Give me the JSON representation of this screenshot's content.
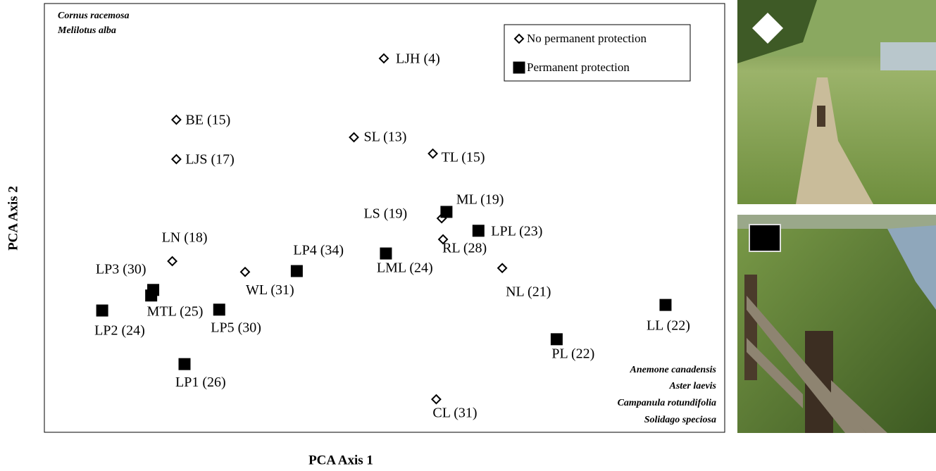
{
  "chart_data": {
    "type": "scatter",
    "xlabel": "PCA Axis 1",
    "ylabel": "PCA Axis 2",
    "xlim": [
      0,
      100
    ],
    "ylim": [
      0,
      100
    ],
    "legend": "top-right",
    "annotations": {
      "top_left": [
        "Cornus racemosa",
        "Melilotus alba"
      ],
      "bottom_right": [
        "Anemone canadensis",
        "Aster laevis",
        "Campanula rotundifolia",
        "Solidago speciosa"
      ]
    },
    "series": [
      {
        "name": "No permanent protection",
        "marker": "diamond",
        "color": "#000000",
        "filled": false,
        "labels": [
          "LJH (4)",
          "BE (15)",
          "SL (13)",
          "LJS (17)",
          "TL (15)",
          "LS (19)",
          "RL (28)",
          "LN (18)",
          "WL (31)",
          "NL (21)",
          "CL (31)"
        ],
        "x": [
          49.9,
          19.4,
          45.5,
          19.4,
          57.1,
          58.4,
          58.6,
          18.8,
          29.5,
          67.3,
          57.6
        ],
        "y": [
          87.2,
          72.9,
          68.8,
          63.7,
          65.0,
          49.9,
          45.0,
          39.9,
          37.4,
          38.3,
          7.7
        ]
      },
      {
        "name": "Permanent protection",
        "marker": "square",
        "color": "#000000",
        "filled": true,
        "labels": [
          "ML (19)",
          "LPL (23)",
          "LP4 (34)",
          "LML (24)",
          "LP3 (30)",
          "MTL (25)",
          "LP2 (24)",
          "LP5 (30)",
          "LL (22)",
          "PL (22)",
          "LP1 (26)"
        ],
        "x": [
          59.1,
          63.8,
          37.1,
          50.2,
          16.0,
          15.7,
          8.5,
          25.7,
          91.3,
          75.3,
          20.6
        ],
        "y": [
          51.4,
          47.0,
          37.6,
          41.7,
          33.2,
          31.9,
          28.4,
          28.6,
          29.7,
          21.7,
          15.9
        ]
      }
    ]
  }
}
